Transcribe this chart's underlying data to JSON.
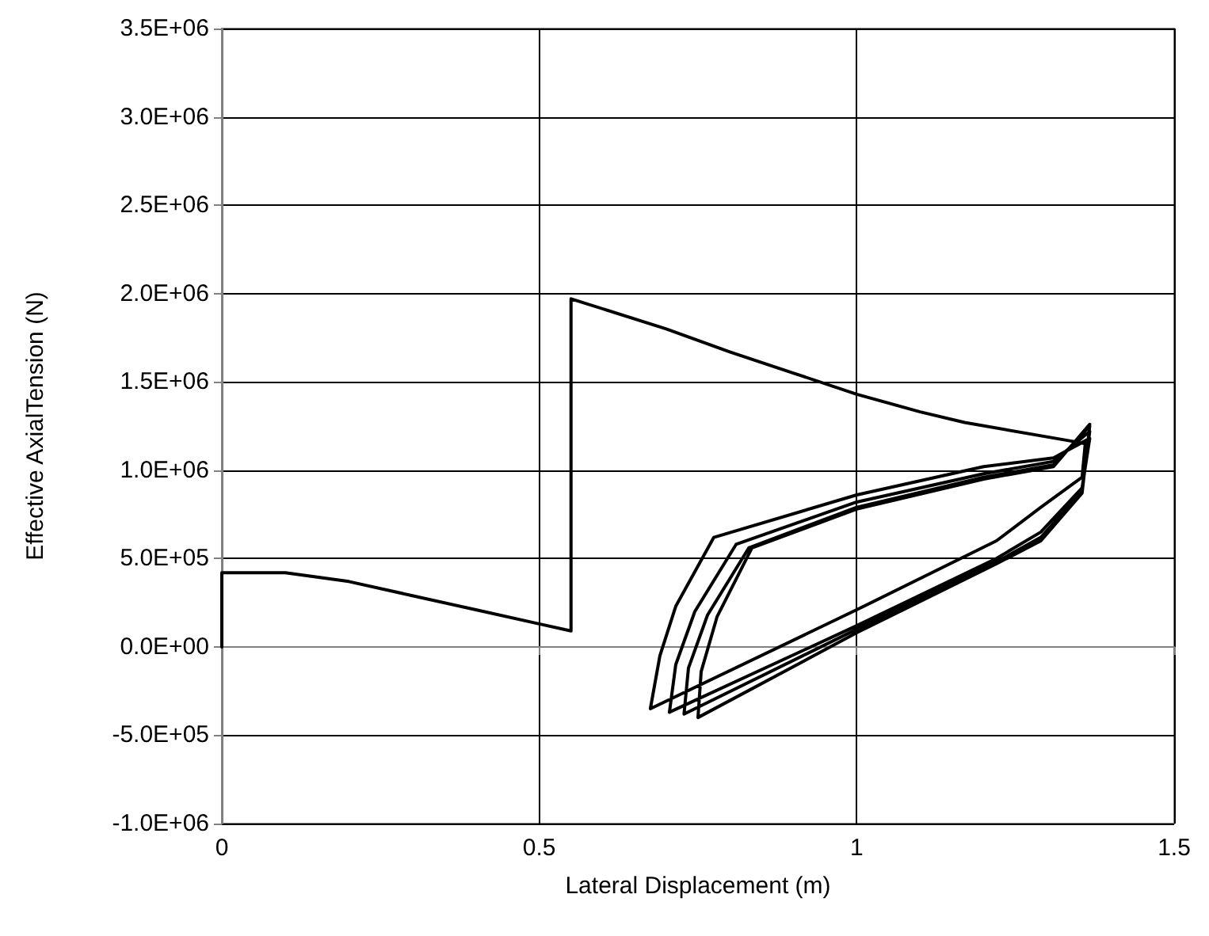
{
  "chart_data": {
    "type": "line",
    "xlabel": "Lateral Displacement (m)",
    "ylabel": "Effective AxialTension (N)",
    "grid": true,
    "marker": "none",
    "line_style": "solid",
    "xlim": [
      0,
      1.5
    ],
    "xticks": [
      0,
      0.5,
      1,
      1.5
    ],
    "ylim": [
      -1000000,
      3500000
    ],
    "yticks": [
      {
        "value": -1000000,
        "label": "-1.0E+06"
      },
      {
        "value": -500000,
        "label": "-5.0E+05"
      },
      {
        "value": 0,
        "label": "0.0E+00"
      },
      {
        "value": 500000,
        "label": "5.0E+05"
      },
      {
        "value": 1000000,
        "label": "1.0E+06"
      },
      {
        "value": 1500000,
        "label": "1.5E+06"
      },
      {
        "value": 2000000,
        "label": "2.0E+06"
      },
      {
        "value": 2500000,
        "label": "2.5E+06"
      },
      {
        "value": 3000000,
        "label": "3.0E+06"
      },
      {
        "value": 3500000,
        "label": "3.5E+06"
      }
    ],
    "series": [
      {
        "color": "#000000",
        "x": [
          0,
          0,
          0.1,
          0.2,
          0.3,
          0.4,
          0.5,
          0.55,
          0.55,
          0.7,
          0.8,
          0.9,
          1.0,
          1.1,
          1.17,
          1.33,
          1.36,
          1.355,
          1.29,
          1.22,
          1.0,
          0.675,
          0.69,
          0.715,
          0.775,
          1.0,
          1.2,
          1.31,
          1.367,
          1.355,
          1.29,
          1.22,
          1.0,
          0.705,
          0.715,
          0.745,
          0.81,
          1.0,
          1.2,
          1.31,
          1.367,
          1.355,
          1.29,
          1.22,
          1.0,
          0.728,
          0.735,
          0.765,
          0.83,
          1.0,
          1.2,
          1.31,
          1.367,
          1.355,
          1.29,
          1.22,
          1.0,
          0.75,
          0.755,
          0.78,
          0.835,
          1.0,
          1.2,
          1.31,
          1.367
        ],
        "values": [
          0,
          420000,
          420000,
          370000,
          290000,
          210000,
          130000,
          90000,
          1970000,
          1800000,
          1670000,
          1550000,
          1430000,
          1330000,
          1270000,
          1170000,
          1150000,
          960000,
          790000,
          600000,
          210000,
          -350000,
          -50000,
          230000,
          620000,
          860000,
          1020000,
          1070000,
          1180000,
          900000,
          650000,
          500000,
          120000,
          -370000,
          -100000,
          200000,
          580000,
          820000,
          980000,
          1050000,
          1220000,
          880000,
          620000,
          480000,
          100000,
          -380000,
          -120000,
          180000,
          560000,
          790000,
          960000,
          1030000,
          1250000,
          870000,
          600000,
          470000,
          80000,
          -400000,
          -140000,
          170000,
          560000,
          780000,
          950000,
          1020000,
          1260000
        ]
      }
    ]
  }
}
